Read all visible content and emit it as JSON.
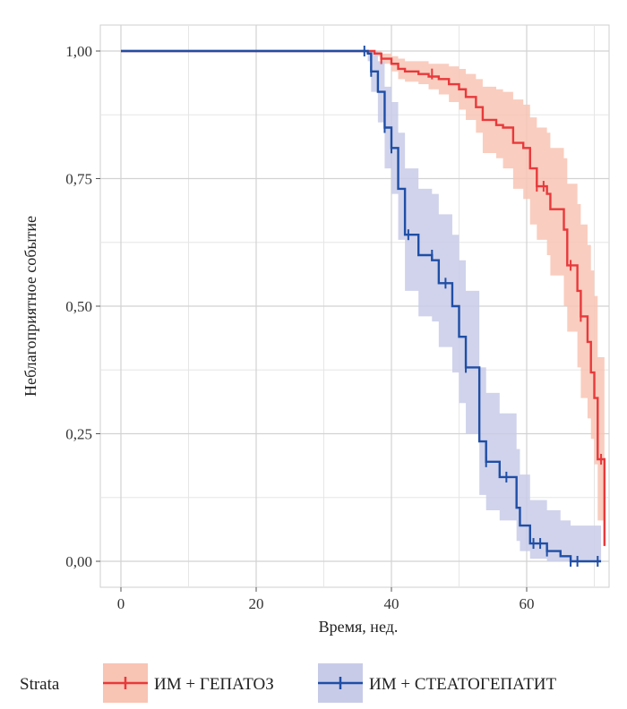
{
  "chart_data": {
    "type": "line",
    "subtype": "kaplan-meier",
    "title": "",
    "xlabel": "Время, нед.",
    "ylabel": "Неблагоприятное событие",
    "xlim": [
      0,
      72
    ],
    "ylim": [
      0,
      1
    ],
    "x_ticks": [
      "0",
      "20",
      "40",
      "60"
    ],
    "x_tick_values": [
      0,
      20,
      40,
      60
    ],
    "y_ticks": [
      "0,00",
      "0,25",
      "0,50",
      "0,75",
      "1,00"
    ],
    "y_tick_values": [
      0,
      0.25,
      0.5,
      0.75,
      1.0
    ],
    "grid": true,
    "legend": {
      "title": "Strata",
      "position": "bottom",
      "entries": [
        "ИМ + ГЕПАТОЗ",
        "ИМ + СТЕАТОГЕПАТИТ"
      ]
    },
    "series": [
      {
        "name": "ИМ + ГЕПАТОЗ",
        "color": "#e8393b",
        "fill": "#f8c4b4",
        "steps": [
          [
            0,
            1.0
          ],
          [
            37.5,
            0.995
          ],
          [
            38.5,
            0.985
          ],
          [
            40,
            0.975
          ],
          [
            41,
            0.965
          ],
          [
            42,
            0.96
          ],
          [
            44,
            0.955
          ],
          [
            45.5,
            0.95
          ],
          [
            47,
            0.945
          ],
          [
            48.5,
            0.935
          ],
          [
            50,
            0.925
          ],
          [
            51,
            0.91
          ],
          [
            52.5,
            0.89
          ],
          [
            53.5,
            0.865
          ],
          [
            55.5,
            0.855
          ],
          [
            56.5,
            0.85
          ],
          [
            58,
            0.82
          ],
          [
            59.5,
            0.81
          ],
          [
            60.5,
            0.77
          ],
          [
            61.5,
            0.735
          ],
          [
            63,
            0.72
          ],
          [
            63.5,
            0.69
          ],
          [
            65.5,
            0.65
          ],
          [
            66,
            0.58
          ],
          [
            67.5,
            0.53
          ],
          [
            68,
            0.48
          ],
          [
            69,
            0.43
          ],
          [
            69.5,
            0.37
          ],
          [
            70,
            0.32
          ],
          [
            70.5,
            0.2
          ],
          [
            71.5,
            0.03
          ]
        ],
        "end_x": 71.5,
        "lower": [
          [
            0,
            1.0
          ],
          [
            37.5,
            0.99
          ],
          [
            38.5,
            0.975
          ],
          [
            40,
            0.96
          ],
          [
            41,
            0.945
          ],
          [
            42,
            0.94
          ],
          [
            44,
            0.935
          ],
          [
            45.5,
            0.925
          ],
          [
            47,
            0.915
          ],
          [
            48.5,
            0.9
          ],
          [
            50,
            0.885
          ],
          [
            51,
            0.865
          ],
          [
            52.5,
            0.84
          ],
          [
            53.5,
            0.8
          ],
          [
            55.5,
            0.79
          ],
          [
            56.5,
            0.77
          ],
          [
            58,
            0.73
          ],
          [
            59.5,
            0.71
          ],
          [
            60.5,
            0.66
          ],
          [
            61.5,
            0.63
          ],
          [
            63,
            0.6
          ],
          [
            63.5,
            0.56
          ],
          [
            65.5,
            0.5
          ],
          [
            66,
            0.45
          ],
          [
            67.5,
            0.38
          ],
          [
            68,
            0.32
          ],
          [
            69,
            0.28
          ],
          [
            69.5,
            0.24
          ],
          [
            70,
            0.19
          ],
          [
            70.5,
            0.08
          ],
          [
            71.5,
            0.0
          ]
        ],
        "upper": [
          [
            0,
            1.0
          ],
          [
            37.5,
            1.0
          ],
          [
            38.5,
            0.995
          ],
          [
            40,
            0.99
          ],
          [
            41,
            0.985
          ],
          [
            42,
            0.98
          ],
          [
            44,
            0.98
          ],
          [
            45.5,
            0.975
          ],
          [
            47,
            0.975
          ],
          [
            48.5,
            0.97
          ],
          [
            50,
            0.965
          ],
          [
            51,
            0.955
          ],
          [
            52.5,
            0.945
          ],
          [
            53.5,
            0.93
          ],
          [
            55.5,
            0.925
          ],
          [
            56.5,
            0.92
          ],
          [
            58,
            0.905
          ],
          [
            59.5,
            0.895
          ],
          [
            60.5,
            0.87
          ],
          [
            61.5,
            0.85
          ],
          [
            63,
            0.84
          ],
          [
            63.5,
            0.81
          ],
          [
            65.5,
            0.79
          ],
          [
            66,
            0.74
          ],
          [
            67.5,
            0.7
          ],
          [
            68,
            0.66
          ],
          [
            69,
            0.62
          ],
          [
            69.5,
            0.57
          ],
          [
            70,
            0.52
          ],
          [
            70.5,
            0.4
          ],
          [
            71.5,
            0.2
          ]
        ],
        "censored": [
          [
            38.5,
            0.985
          ],
          [
            46,
            0.955
          ],
          [
            61.5,
            0.735
          ],
          [
            62.5,
            0.735
          ],
          [
            66.5,
            0.58
          ],
          [
            68,
            0.48
          ],
          [
            71,
            0.2
          ]
        ]
      },
      {
        "name": "ИМ + СТЕАТОГЕПАТИТ",
        "color": "#1f4ea6",
        "fill": "#c8cbe8",
        "steps": [
          [
            0,
            1.0
          ],
          [
            36.5,
            0.995
          ],
          [
            37,
            0.96
          ],
          [
            38,
            0.92
          ],
          [
            39,
            0.85
          ],
          [
            40,
            0.81
          ],
          [
            41,
            0.73
          ],
          [
            42,
            0.64
          ],
          [
            44,
            0.6
          ],
          [
            46,
            0.59
          ],
          [
            47,
            0.545
          ],
          [
            49,
            0.5
          ],
          [
            50,
            0.44
          ],
          [
            51,
            0.38
          ],
          [
            53,
            0.235
          ],
          [
            54,
            0.195
          ],
          [
            56,
            0.165
          ],
          [
            58.5,
            0.105
          ],
          [
            59,
            0.07
          ],
          [
            60.5,
            0.035
          ],
          [
            63,
            0.02
          ],
          [
            65,
            0.01
          ],
          [
            66.5,
            0.0
          ],
          [
            70.5,
            0.0
          ]
        ],
        "end_x": 71,
        "lower": [
          [
            0,
            1.0
          ],
          [
            36.5,
            0.98
          ],
          [
            37,
            0.92
          ],
          [
            38,
            0.86
          ],
          [
            39,
            0.77
          ],
          [
            40,
            0.72
          ],
          [
            41,
            0.63
          ],
          [
            42,
            0.53
          ],
          [
            44,
            0.48
          ],
          [
            46,
            0.47
          ],
          [
            47,
            0.42
          ],
          [
            49,
            0.37
          ],
          [
            50,
            0.31
          ],
          [
            51,
            0.25
          ],
          [
            53,
            0.13
          ],
          [
            54,
            0.1
          ],
          [
            56,
            0.08
          ],
          [
            58.5,
            0.04
          ],
          [
            59,
            0.02
          ],
          [
            60.5,
            0.005
          ],
          [
            63,
            0.0
          ],
          [
            65,
            0.0
          ],
          [
            66.5,
            0.0
          ],
          [
            70.5,
            0.0
          ]
        ],
        "upper": [
          [
            0,
            1.0
          ],
          [
            36.5,
            1.0
          ],
          [
            37,
            1.0
          ],
          [
            38,
            0.98
          ],
          [
            39,
            0.93
          ],
          [
            40,
            0.9
          ],
          [
            41,
            0.84
          ],
          [
            42,
            0.77
          ],
          [
            44,
            0.73
          ],
          [
            46,
            0.72
          ],
          [
            47,
            0.68
          ],
          [
            49,
            0.64
          ],
          [
            50,
            0.59
          ],
          [
            51,
            0.53
          ],
          [
            53,
            0.38
          ],
          [
            54,
            0.33
          ],
          [
            56,
            0.29
          ],
          [
            58.5,
            0.22
          ],
          [
            59,
            0.17
          ],
          [
            60.5,
            0.12
          ],
          [
            63,
            0.1
          ],
          [
            65,
            0.08
          ],
          [
            66.5,
            0.07
          ],
          [
            70.5,
            0.07
          ]
        ],
        "censored": [
          [
            36,
            1.0
          ],
          [
            37,
            0.96
          ],
          [
            39,
            0.85
          ],
          [
            40,
            0.81
          ],
          [
            42.5,
            0.64
          ],
          [
            46,
            0.6
          ],
          [
            48,
            0.545
          ],
          [
            51,
            0.38
          ],
          [
            54,
            0.195
          ],
          [
            57,
            0.165
          ],
          [
            61,
            0.035
          ],
          [
            62,
            0.035
          ],
          [
            63,
            0.02
          ],
          [
            66.5,
            0.0
          ],
          [
            67.5,
            0.0
          ],
          [
            70.5,
            0.0
          ]
        ]
      }
    ]
  }
}
